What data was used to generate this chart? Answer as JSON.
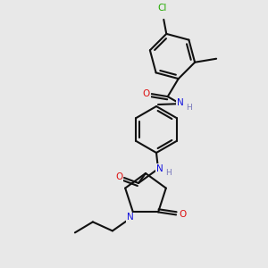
{
  "bg": "#e8e8e8",
  "C": "#111111",
  "N": "#1111dd",
  "O": "#dd1111",
  "Cl": "#22aa00",
  "H": "#7777bb",
  "lw": 1.5
}
